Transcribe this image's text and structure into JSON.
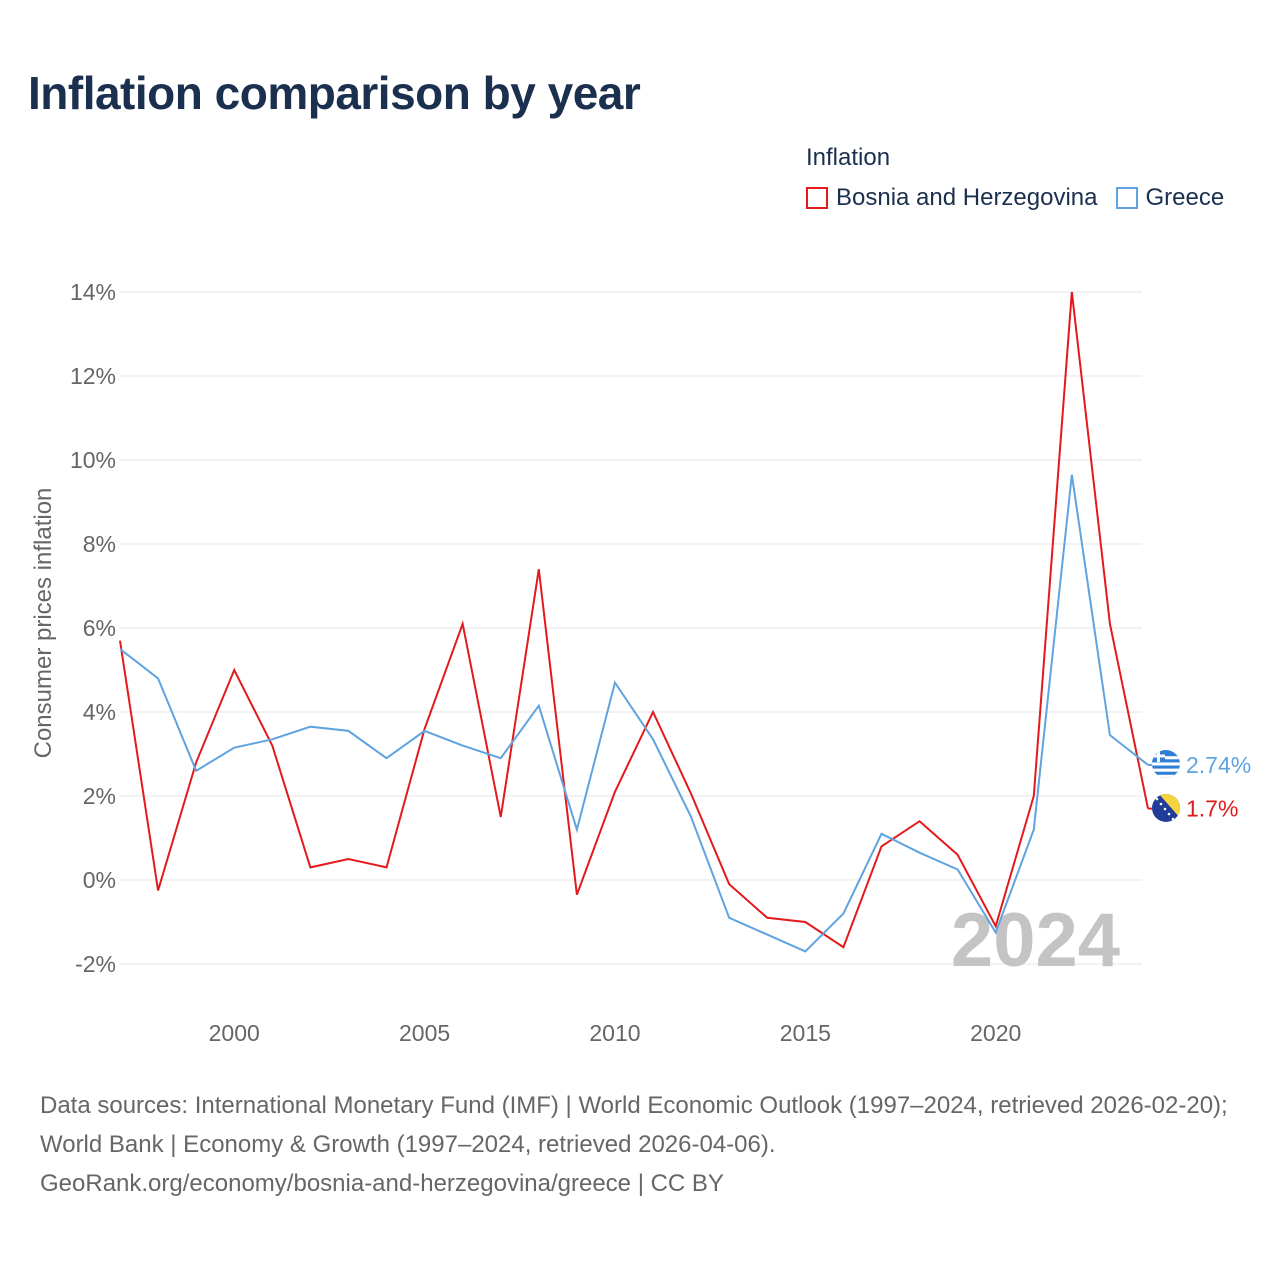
{
  "title": "Inflation comparison by year",
  "legend": {
    "title": "Inflation",
    "items": [
      {
        "name": "Bosnia and Herzegovina",
        "color": "#e31a1c"
      },
      {
        "name": "Greece",
        "color": "#5fa3e0"
      }
    ]
  },
  "chart_data": {
    "type": "line",
    "title": "Inflation comparison by year",
    "xlabel": "",
    "ylabel": "Consumer prices inflation",
    "xlim": [
      1997,
      2024
    ],
    "ylim": [
      -3,
      14.5
    ],
    "yticks": [
      -2,
      0,
      2,
      4,
      6,
      8,
      10,
      12,
      14
    ],
    "ytick_labels": [
      "-2%",
      "0%",
      "2%",
      "4%",
      "6%",
      "8%",
      "10%",
      "12%",
      "14%"
    ],
    "xticks": [
      2000,
      2005,
      2010,
      2015,
      2020
    ],
    "xtick_labels": [
      "2000",
      "2005",
      "2010",
      "2015",
      "2020"
    ],
    "grid": true,
    "year_watermark": "2024",
    "x": [
      1997,
      1998,
      1999,
      2000,
      2001,
      2002,
      2003,
      2004,
      2005,
      2006,
      2007,
      2008,
      2009,
      2010,
      2011,
      2012,
      2013,
      2014,
      2015,
      2016,
      2017,
      2018,
      2019,
      2020,
      2021,
      2022,
      2023,
      2024
    ],
    "series": [
      {
        "name": "Bosnia and Herzegovina",
        "color": "#e31a1c",
        "values": [
          5.7,
          -0.25,
          2.8,
          5.0,
          3.2,
          0.3,
          0.5,
          0.3,
          3.6,
          6.1,
          1.5,
          7.4,
          -0.35,
          2.1,
          4.0,
          2.05,
          -0.1,
          -0.9,
          -1.0,
          -1.6,
          0.8,
          1.4,
          0.6,
          -1.1,
          2.0,
          14.0,
          6.1,
          1.7
        ],
        "end_label": "1.7%",
        "flag_icon": "bosnia-flag-icon"
      },
      {
        "name": "Greece",
        "color": "#5fa3e0",
        "values": [
          5.5,
          4.8,
          2.6,
          3.15,
          3.35,
          3.65,
          3.55,
          2.9,
          3.55,
          3.2,
          2.9,
          4.15,
          1.2,
          4.7,
          3.35,
          1.5,
          -0.9,
          -1.3,
          -1.7,
          -0.8,
          1.1,
          0.65,
          0.25,
          -1.25,
          1.2,
          9.65,
          3.45,
          2.74
        ],
        "end_label": "2.74%",
        "flag_icon": "greece-flag-icon"
      }
    ]
  },
  "footer": {
    "line1": "Data sources: International Monetary Fund (IMF) | World Economic Outlook (1997–2024, retrieved 2026-02-20); World Bank | Economy & Growth (1997–2024, retrieved 2026-04-06).",
    "line2": "GeoRank.org/economy/bosnia-and-herzegovina/greece | CC BY"
  }
}
